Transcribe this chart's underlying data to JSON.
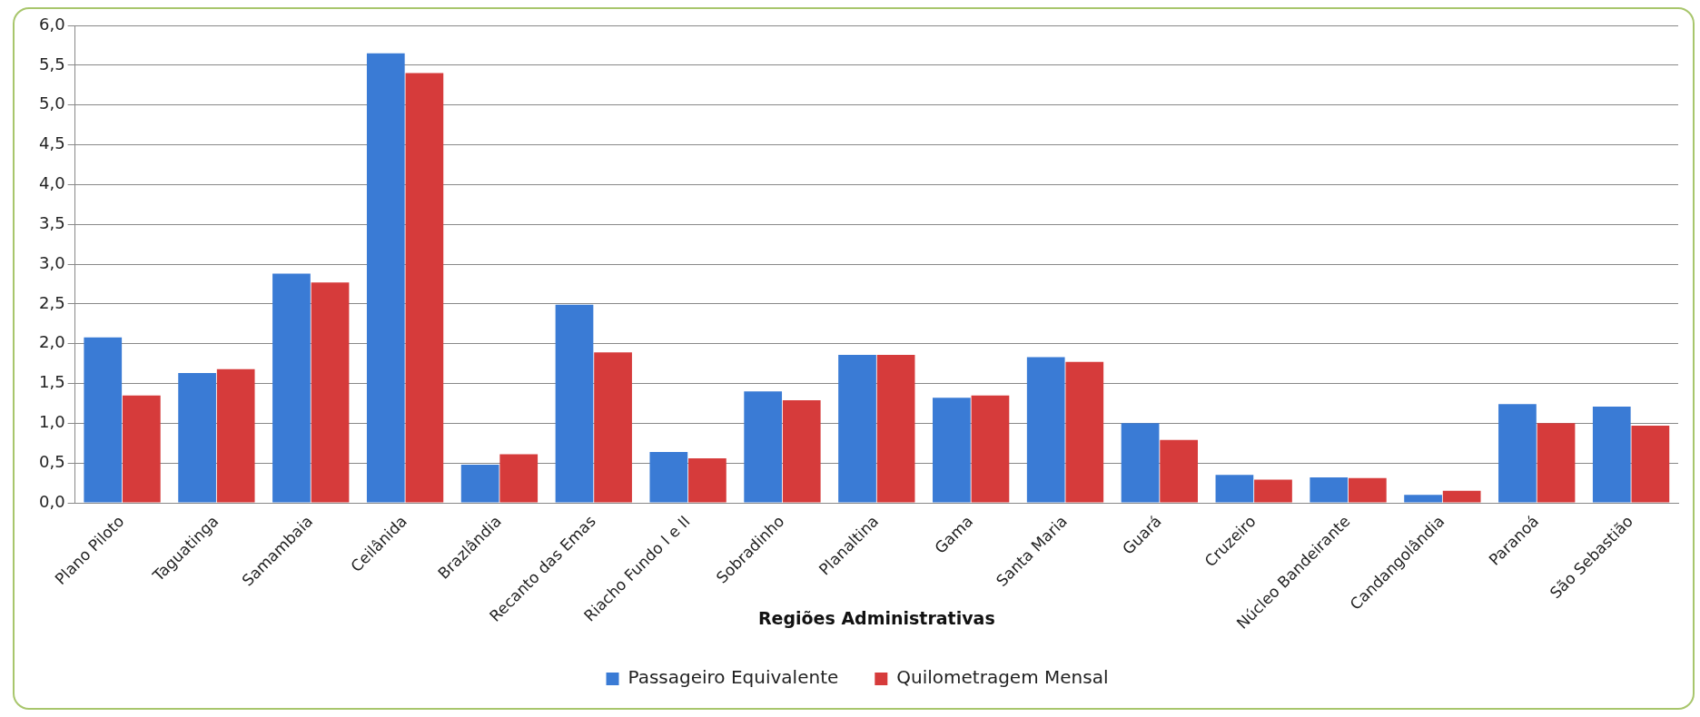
{
  "chart_data": {
    "type": "bar",
    "xlabel": "Regiões Administrativas",
    "categories": [
      "Plano Piloto",
      "Taguatinga",
      "Samambaia",
      "Ceilânida",
      "Brazlândia",
      "Recanto das Emas",
      "Riacho Fundo I e II",
      "Sobradinho",
      "Planaltina",
      "Gama",
      "Santa Maria",
      "Guará",
      "Cruzeiro",
      "Núcleo Bandeirante",
      "Candangolândia",
      "Paranoá",
      "São Sebastião"
    ],
    "series": [
      {
        "name": "Passageiro Equivalente",
        "color": "#3a7bd5",
        "values": [
          2.08,
          1.63,
          2.88,
          5.65,
          0.48,
          2.49,
          0.64,
          1.4,
          1.86,
          1.32,
          1.83,
          1.0,
          0.35,
          0.32,
          0.1,
          1.24,
          1.21
        ]
      },
      {
        "name": "Quilometragem Mensal",
        "color": "#d63b3b",
        "values": [
          1.35,
          1.68,
          2.77,
          5.4,
          0.61,
          1.89,
          0.56,
          1.29,
          1.86,
          1.35,
          1.77,
          0.79,
          0.29,
          0.31,
          0.15,
          1.0,
          0.97
        ]
      }
    ],
    "ylim": [
      0,
      6
    ],
    "yticks": [
      {
        "value": 0,
        "label": "0,0"
      },
      {
        "value": 0.5,
        "label": "0,5"
      },
      {
        "value": 1,
        "label": "1,0"
      },
      {
        "value": 1.5,
        "label": "1,5"
      },
      {
        "value": 2,
        "label": "2,0"
      },
      {
        "value": 2.5,
        "label": "2,5"
      },
      {
        "value": 3,
        "label": "3,0"
      },
      {
        "value": 3.5,
        "label": "3,5"
      },
      {
        "value": 4,
        "label": "4,0"
      },
      {
        "value": 4.5,
        "label": "4,5"
      },
      {
        "value": 5,
        "label": "5,0"
      },
      {
        "value": 5.5,
        "label": "5,5"
      },
      {
        "value": 6,
        "label": "6,0"
      }
    ],
    "grid": "y",
    "legend": "bottom"
  }
}
